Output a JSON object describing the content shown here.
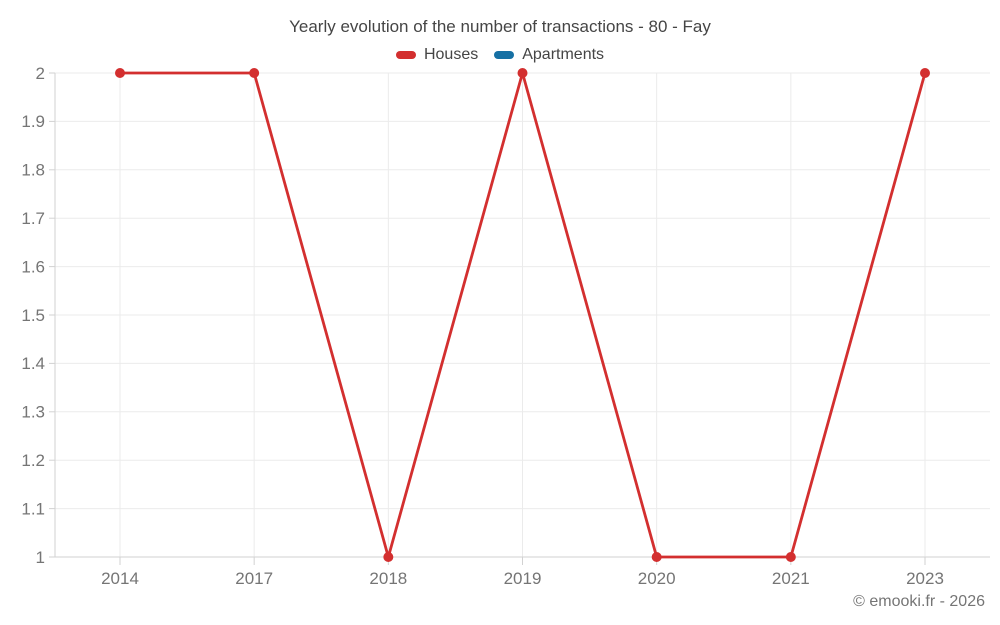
{
  "header": {
    "title": "Yearly evolution of the number of transactions - 80 - Fay"
  },
  "legend": {
    "items": [
      {
        "label": "Houses",
        "color": "#d32f2f"
      },
      {
        "label": "Apartments",
        "color": "#1670a4"
      }
    ]
  },
  "footer": {
    "copyright": "© emooki.fr - 2026"
  },
  "chart_data": {
    "type": "line",
    "title": "Yearly evolution of the number of transactions - 80 - Fay",
    "categories": [
      "2014",
      "2017",
      "2018",
      "2019",
      "2020",
      "2021",
      "2023"
    ],
    "series": [
      {
        "name": "Houses",
        "color": "#d32f2f",
        "values": [
          2,
          2,
          1,
          2,
          1,
          1,
          2
        ]
      },
      {
        "name": "Apartments",
        "color": "#1670a4",
        "values": []
      }
    ],
    "xlabel": "",
    "ylabel": "",
    "ylim": [
      1,
      2
    ],
    "y_tick_step": 0.1,
    "y_tick_labels": [
      "1",
      "1.1",
      "1.2",
      "1.3",
      "1.4",
      "1.5",
      "1.6",
      "1.7",
      "1.8",
      "1.9",
      "2"
    ],
    "grid": true,
    "legend_position": "top",
    "grid_color": "#ebebeb",
    "axis_color": "#d2d2d2",
    "tick_label_color": "#757575",
    "marker_radius": 5,
    "line_width": 2.8
  }
}
